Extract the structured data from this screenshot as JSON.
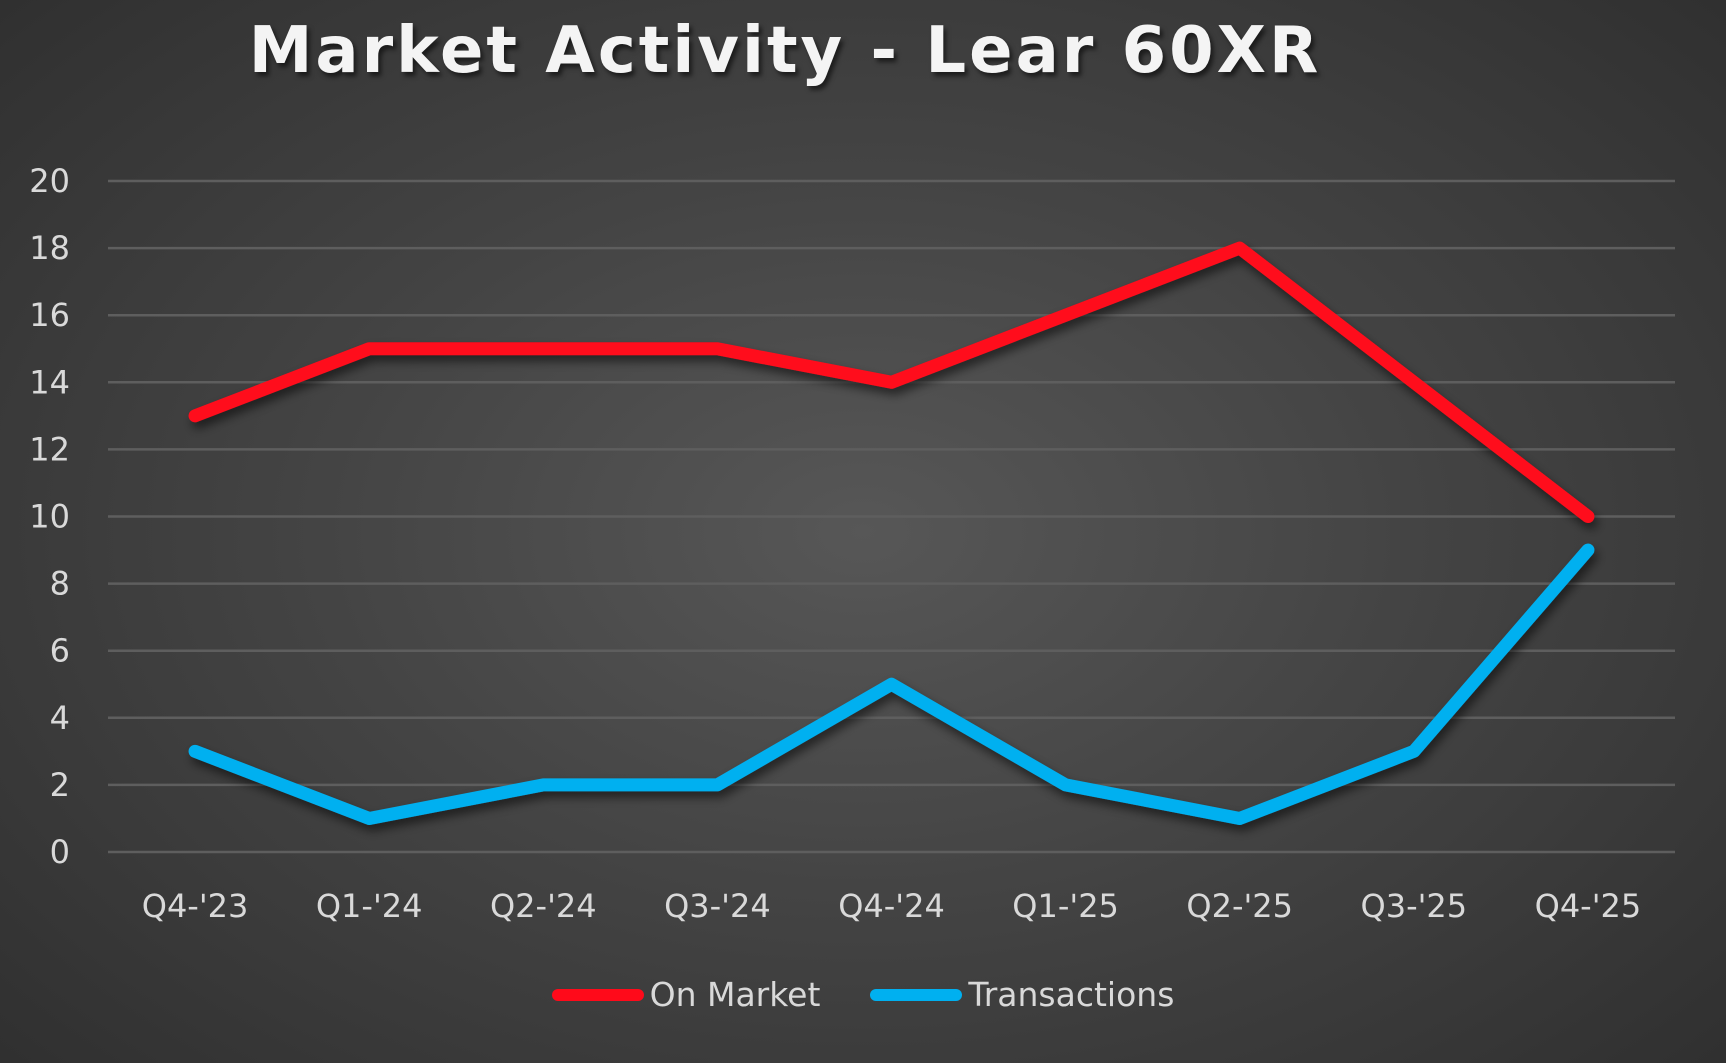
{
  "chart_data": {
    "type": "line",
    "title": "Market Activity - Lear 60XR",
    "xlabel": "",
    "ylabel": "",
    "categories": [
      "Q4-'23",
      "Q1-'24",
      "Q2-'24",
      "Q3-'24",
      "Q4-'24",
      "Q1-'25",
      "Q2-'25",
      "Q3-'25",
      "Q4-'25"
    ],
    "series": [
      {
        "name": "On Market",
        "color": "#ff0a1a",
        "values": [
          13,
          15,
          15,
          15,
          14,
          16,
          18,
          14,
          10
        ]
      },
      {
        "name": "Transactions",
        "color": "#00b0f0",
        "values": [
          3,
          1,
          2,
          2,
          5,
          2,
          1,
          3,
          9
        ]
      }
    ],
    "ylim": [
      0,
      20
    ],
    "yticks": [
      0,
      2,
      4,
      6,
      8,
      10,
      12,
      14,
      16,
      18,
      20
    ],
    "grid": true,
    "legend_position": "bottom"
  },
  "legend": {
    "on_market": "On Market",
    "transactions": "Transactions"
  }
}
